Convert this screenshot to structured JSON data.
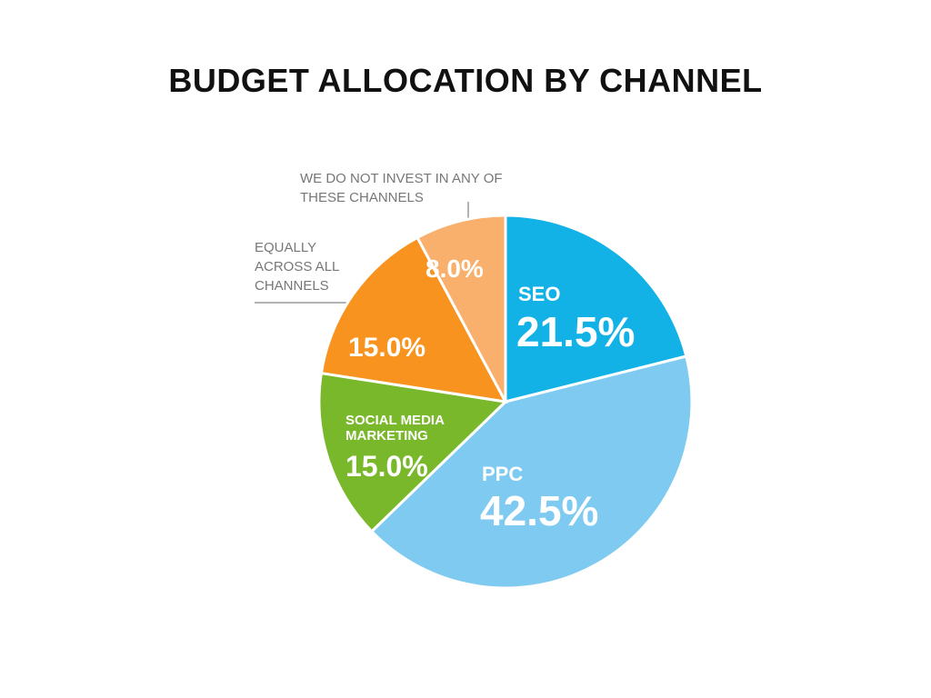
{
  "chart_data": {
    "type": "pie",
    "title": "BUDGET ALLOCATION BY CHANNEL",
    "categories": [
      "SEO",
      "PPC",
      "SOCIAL MEDIA MARKETING",
      "EQUALLY ACROSS ALL CHANNELS",
      "WE DO NOT INVEST IN ANY OF THESE CHANNELS"
    ],
    "values": [
      21.5,
      42.5,
      15,
      15,
      8
    ],
    "value_labels": [
      "21.5%",
      "42.5%",
      "15.0%",
      "15.0%",
      "8.0%"
    ],
    "colors": [
      "#12b2e6",
      "#7fcaf0",
      "#78b82a",
      "#f7931e",
      "#f8b06c"
    ]
  }
}
